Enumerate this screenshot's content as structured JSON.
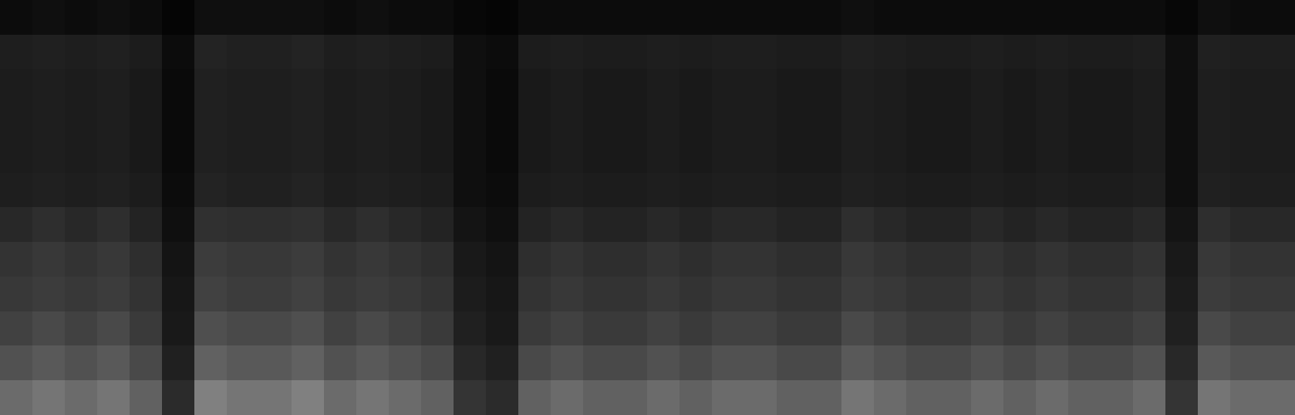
{
  "chart_data": {
    "type": "heatmap",
    "tick_labels": false,
    "color_range": [
      0,
      100
    ],
    "cells": [
      [
        5,
        6,
        5,
        6,
        5,
        2,
        6,
        6,
        6,
        6,
        5,
        6,
        5,
        5,
        3,
        2,
        5,
        5,
        5,
        5,
        5,
        5,
        5,
        5,
        5,
        5,
        6,
        5,
        5,
        5,
        5,
        5,
        5,
        5,
        5,
        5,
        3,
        6,
        5,
        5
      ],
      [
        12,
        13,
        12,
        13,
        11,
        5,
        14,
        13,
        13,
        14,
        12,
        13,
        12,
        11,
        6,
        5,
        11,
        12,
        11,
        11,
        12,
        11,
        12,
        12,
        11,
        11,
        13,
        12,
        11,
        11,
        12,
        11,
        12,
        11,
        11,
        12,
        6,
        13,
        12,
        12
      ],
      [
        11,
        12,
        11,
        12,
        10,
        4,
        13,
        12,
        12,
        13,
        11,
        12,
        11,
        10,
        6,
        4,
        10,
        11,
        10,
        10,
        11,
        10,
        11,
        11,
        10,
        10,
        12,
        11,
        10,
        10,
        11,
        10,
        11,
        10,
        10,
        11,
        6,
        12,
        11,
        11
      ],
      [
        11,
        12,
        11,
        12,
        10,
        4,
        13,
        12,
        12,
        13,
        11,
        12,
        11,
        10,
        6,
        4,
        10,
        11,
        10,
        10,
        11,
        10,
        11,
        11,
        10,
        10,
        12,
        11,
        10,
        10,
        11,
        10,
        11,
        10,
        10,
        11,
        6,
        12,
        11,
        11
      ],
      [
        11,
        12,
        11,
        12,
        10,
        4,
        13,
        12,
        12,
        13,
        11,
        12,
        11,
        10,
        6,
        4,
        10,
        11,
        10,
        10,
        11,
        10,
        11,
        11,
        10,
        10,
        12,
        11,
        10,
        10,
        11,
        10,
        11,
        10,
        10,
        11,
        6,
        12,
        11,
        11
      ],
      [
        12,
        13,
        12,
        13,
        11,
        5,
        14,
        13,
        13,
        14,
        12,
        13,
        12,
        11,
        6,
        5,
        11,
        12,
        11,
        11,
        12,
        11,
        12,
        12,
        11,
        11,
        13,
        12,
        11,
        11,
        12,
        11,
        12,
        11,
        11,
        12,
        6,
        13,
        12,
        12
      ],
      [
        16,
        18,
        16,
        18,
        14,
        6,
        19,
        18,
        18,
        19,
        16,
        18,
        16,
        14,
        8,
        6,
        14,
        16,
        14,
        14,
        16,
        14,
        16,
        16,
        14,
        14,
        18,
        16,
        14,
        14,
        16,
        14,
        16,
        14,
        14,
        16,
        8,
        18,
        16,
        16
      ],
      [
        20,
        22,
        20,
        22,
        18,
        8,
        24,
        22,
        22,
        24,
        20,
        22,
        20,
        18,
        10,
        8,
        18,
        20,
        18,
        18,
        20,
        18,
        20,
        20,
        18,
        18,
        22,
        20,
        18,
        18,
        20,
        18,
        20,
        18,
        18,
        20,
        10,
        22,
        20,
        20
      ],
      [
        22,
        24,
        22,
        24,
        20,
        9,
        26,
        24,
        24,
        26,
        22,
        24,
        22,
        20,
        11,
        9,
        20,
        22,
        20,
        20,
        22,
        20,
        22,
        22,
        20,
        20,
        24,
        22,
        20,
        20,
        22,
        20,
        22,
        20,
        20,
        22,
        11,
        24,
        22,
        22
      ],
      [
        26,
        29,
        26,
        29,
        23,
        10,
        31,
        29,
        29,
        31,
        26,
        29,
        26,
        23,
        13,
        10,
        23,
        26,
        23,
        23,
        26,
        23,
        26,
        26,
        23,
        23,
        29,
        26,
        23,
        23,
        26,
        23,
        26,
        23,
        23,
        26,
        13,
        29,
        26,
        26
      ],
      [
        32,
        35,
        32,
        35,
        29,
        13,
        38,
        35,
        35,
        38,
        32,
        35,
        32,
        29,
        16,
        13,
        29,
        32,
        29,
        29,
        32,
        29,
        32,
        32,
        29,
        29,
        35,
        32,
        29,
        29,
        32,
        29,
        32,
        29,
        29,
        32,
        16,
        35,
        32,
        32
      ],
      [
        42,
        46,
        42,
        46,
        38,
        17,
        50,
        46,
        46,
        50,
        42,
        46,
        42,
        38,
        21,
        17,
        38,
        42,
        38,
        38,
        42,
        38,
        42,
        42,
        38,
        38,
        46,
        42,
        38,
        38,
        42,
        38,
        42,
        38,
        38,
        42,
        21,
        46,
        42,
        42
      ]
    ]
  }
}
